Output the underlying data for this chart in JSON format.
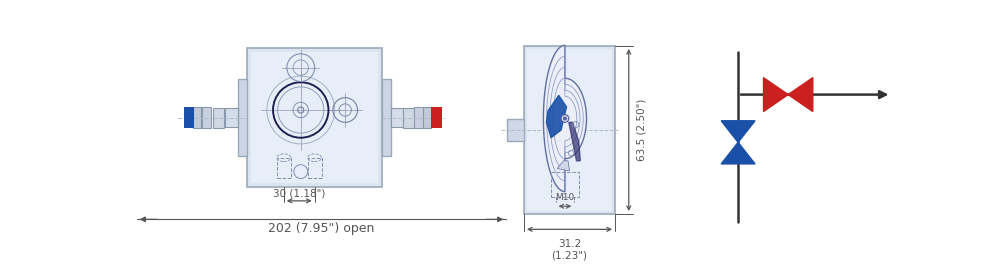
{
  "bg_color": "#ffffff",
  "dim_color": "#555555",
  "blue_color": "#1a50a8",
  "red_color": "#cc2020",
  "body_fc": "#dce4f0",
  "body_ec": "#9aaabb",
  "fitting_fc": "#c8d2de",
  "fitting_ec": "#8899aa",
  "sketch_lc": "#8090b0",
  "dim_202_text": "202 (7.95\") open",
  "dim_30_text": "30 (1.18\")",
  "dim_635_text": "63.5 (2.50\")",
  "dim_312_text": "31.2\n(1.23\")",
  "dim_M10_text": "M10",
  "sym_line_color": "#333333",
  "sym_red": "#cc2020",
  "sym_blue": "#1a50a8"
}
